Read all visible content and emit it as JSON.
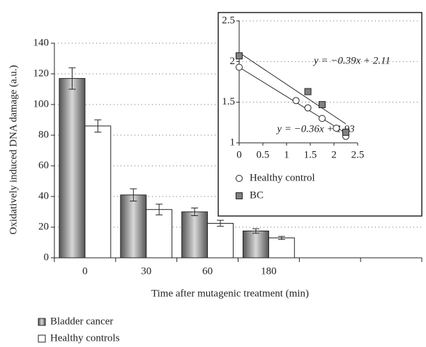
{
  "chart_data": [
    {
      "type": "bar",
      "y_label": "Oxidatively induced DNA damage (a.u.)",
      "x_label": "Time after mutagenic treatment (min)",
      "categories": [
        "0",
        "30",
        "60",
        "180",
        null,
        null
      ],
      "series": [
        {
          "name": "Bladder cancer",
          "color": "#8a8a8a",
          "values": [
            117,
            41,
            30,
            17.5,
            null,
            null
          ],
          "errors": [
            7,
            4,
            2.5,
            1.5,
            null,
            null
          ]
        },
        {
          "name": "Healthy controls",
          "color": "#ffffff",
          "values": [
            86,
            31.5,
            22.5,
            13,
            null,
            null
          ],
          "errors": [
            4,
            3.5,
            2,
            1,
            null,
            null
          ]
        }
      ],
      "ylim": [
        0,
        140
      ],
      "yticks": [
        0,
        20,
        40,
        60,
        80,
        100,
        120,
        140
      ],
      "grid": true,
      "legend": "bottom"
    },
    {
      "type": "scatter",
      "xlim": [
        0,
        2.5
      ],
      "xticks": [
        0,
        0.5,
        1,
        1.5,
        2,
        2.5
      ],
      "ylim": [
        1,
        2.5
      ],
      "yticks": [
        1,
        1.5,
        2,
        2.5
      ],
      "grid": true,
      "series": [
        {
          "name": "Healthy control",
          "marker": "circle",
          "color": "#ffffff",
          "x": [
            0,
            1.2,
            1.45,
            1.75,
            2.05,
            2.25
          ],
          "values": [
            1.93,
            1.52,
            1.43,
            1.3,
            1.18,
            1.08
          ]
        },
        {
          "name": "BC",
          "marker": "square",
          "color": "#808080",
          "x": [
            0,
            1.45,
            1.75,
            2.25
          ],
          "values": [
            2.07,
            1.63,
            1.47,
            1.13
          ]
        }
      ],
      "fits": [
        {
          "label": "y = −0.39x + 2.11",
          "slope": -0.39,
          "intercept": 2.11,
          "x_end": 2.25
        },
        {
          "label": "y = −0.36x + 1.93",
          "slope": -0.36,
          "intercept": 1.93,
          "x_end": 2.25
        }
      ]
    }
  ]
}
